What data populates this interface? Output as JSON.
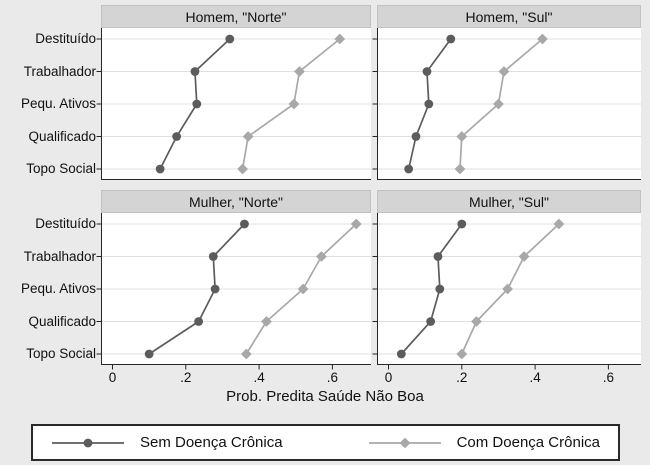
{
  "chart_data": {
    "type": "line",
    "title": "",
    "xlabel": "Prob. Predita Saúde Não Boa",
    "categories": [
      "Destituído",
      "Trabalhador",
      "Pequ. Ativos",
      "Qualificado",
      "Topo Social"
    ],
    "x_ticks": {
      "values": [
        0,
        0.2,
        0.4,
        0.6
      ],
      "labels": [
        "0",
        ".2",
        ".4",
        ".6"
      ]
    },
    "xlim": [
      0,
      0.7
    ],
    "grid": "horizontal",
    "legend_position": "bottom",
    "layout": {
      "rows": 2,
      "cols": 2,
      "shared_x": true,
      "shared_y": true
    },
    "series_meta": [
      {
        "name": "Sem Doença Crônica",
        "marker": "circle",
        "color": "#5c5c5c"
      },
      {
        "name": "Com Doença Crônica",
        "marker": "diamond",
        "color": "#a8a8a8"
      }
    ],
    "panels": [
      {
        "title": "Homem, \"Norte\"",
        "series": [
          {
            "name": "Sem Doença Crônica",
            "values": [
              0.32,
              0.225,
              0.23,
              0.175,
              0.13
            ]
          },
          {
            "name": "Com Doença Crônica",
            "values": [
              0.62,
              0.51,
              0.495,
              0.37,
              0.355
            ]
          }
        ]
      },
      {
        "title": "Homem, \"Sul\"",
        "series": [
          {
            "name": "Sem Doença Crônica",
            "values": [
              0.17,
              0.105,
              0.11,
              0.075,
              0.055
            ]
          },
          {
            "name": "Com Doença Crônica",
            "values": [
              0.42,
              0.315,
              0.3,
              0.2,
              0.195
            ]
          }
        ]
      },
      {
        "title": "Mulher, \"Norte\"",
        "series": [
          {
            "name": "Sem Doença Crônica",
            "values": [
              0.36,
              0.275,
              0.28,
              0.235,
              0.1
            ]
          },
          {
            "name": "Com Doença Crônica",
            "values": [
              0.665,
              0.57,
              0.52,
              0.42,
              0.365
            ]
          }
        ]
      },
      {
        "title": "Mulher, \"Sul\"",
        "series": [
          {
            "name": "Sem Doença Crônica",
            "values": [
              0.2,
              0.135,
              0.14,
              0.115,
              0.035
            ]
          },
          {
            "name": "Com Doença Crônica",
            "values": [
              0.465,
              0.37,
              0.325,
              0.24,
              0.2
            ]
          }
        ]
      }
    ],
    "colors": {
      "background": "#eaeaea",
      "plot_background": "#ffffff",
      "header_background": "#d4d4d4",
      "gridline": "#e0e0e0",
      "axis": "#262626",
      "text": "#111111"
    }
  }
}
